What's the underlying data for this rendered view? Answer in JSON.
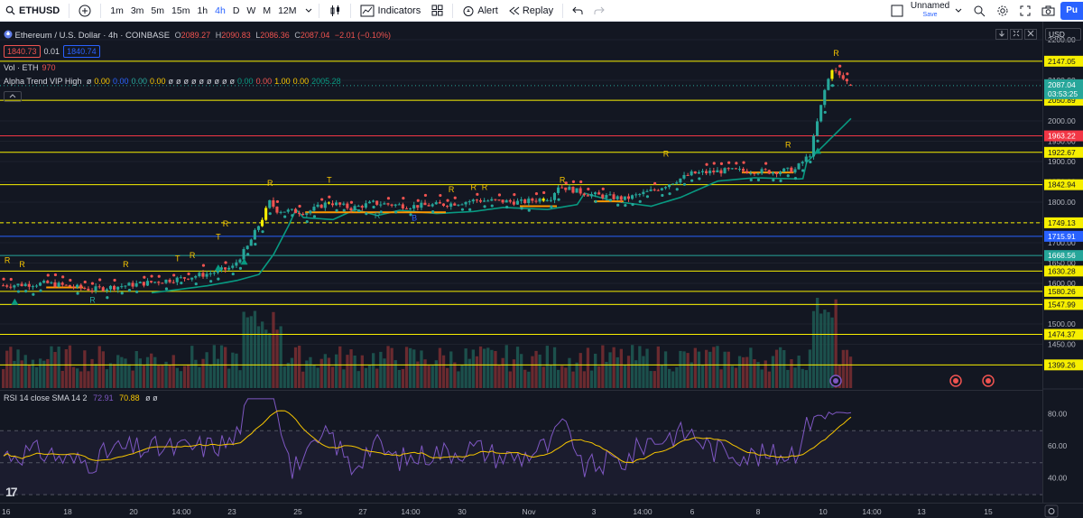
{
  "toolbar": {
    "symbol": "ETHUSD",
    "timeframes": [
      "1m",
      "3m",
      "5m",
      "15m",
      "1h",
      "4h",
      "D",
      "W",
      "M",
      "12M"
    ],
    "active_timeframe": "4h",
    "indicators_label": "Indicators",
    "alert_label": "Alert",
    "replay_label": "Replay",
    "layout_name": "Unnamed",
    "save_label": "Save",
    "publish_label": "Pu"
  },
  "legend": {
    "title": "Ethereum / U.S. Dollar · 4h · COINBASE",
    "o_label": "O",
    "o": "2089.27",
    "h_label": "H",
    "h": "2090.83",
    "l_label": "L",
    "l": "2086.36",
    "c_label": "C",
    "c": "2087.04",
    "change": "−2.01 (−0.10%)",
    "sell_price": "1840.73",
    "spread": "0.01",
    "buy_price": "1840.74",
    "volume_label": "Vol · ETH",
    "volume_value": "970",
    "alpha_label": "Alpha Trend VIP High",
    "alpha_values": [
      "ø",
      "0.00",
      "0.00",
      "0.00",
      "0.00",
      "ø",
      "ø",
      "ø",
      "ø",
      "ø",
      "ø",
      "ø",
      "ø",
      "ø",
      "0.00",
      "0.00",
      "1.00",
      "0.00",
      "2005.28"
    ],
    "collapse_icon": "chevron-up",
    "rsi_label": "RSI 14 close SMA 14 2",
    "rsi_value": "72.91",
    "rsi_sma_value": "70.88",
    "rsi_extra": "ø ø"
  },
  "currency": "USD",
  "price_axis": {
    "ticks": [
      "2200.00",
      "2150.00",
      "2100.00",
      "2050.00",
      "2000.00",
      "1950.00",
      "1900.00",
      "1850.00",
      "1800.00",
      "1750.00",
      "1700.00",
      "1650.00",
      "1600.00",
      "1550.00",
      "1500.00",
      "1450.00"
    ],
    "levels": [
      {
        "label": "2147.05",
        "color": "#f7ef00",
        "price": 2147.05
      },
      {
        "label": "2050.89",
        "color": "#f7ef00",
        "price": 2050.89
      },
      {
        "label": "1963.22",
        "color": "#f23645",
        "price": 1963.22
      },
      {
        "label": "1922.67",
        "color": "#f7ef00",
        "price": 1922.67
      },
      {
        "label": "1842.94",
        "color": "#f7ef00",
        "price": 1842.94
      },
      {
        "label": "1749.13",
        "color": "#f7ef00",
        "price": 1749.13
      },
      {
        "label": "1715.91",
        "color": "#2962ff",
        "price": 1715.91
      },
      {
        "label": "1668.56",
        "color": "#26a69a",
        "price": 1668.56
      },
      {
        "label": "1630.28",
        "color": "#f7ef00",
        "price": 1630.28
      },
      {
        "label": "1580.26",
        "color": "#f7ef00",
        "price": 1580.26
      },
      {
        "label": "1547.99",
        "color": "#f7ef00",
        "price": 1547.99
      },
      {
        "label": "1474.37",
        "color": "#f7ef00",
        "price": 1474.37
      },
      {
        "label": "1399.26",
        "color": "#f7ef00",
        "price": 1399.26
      }
    ],
    "current_price": "2087.04",
    "countdown": "03:53:25"
  },
  "rsi_axis": {
    "ticks": [
      "80.00",
      "60.00",
      "40.00"
    ]
  },
  "time_axis": {
    "labels": [
      "16",
      "18",
      "20",
      "14:00",
      "23",
      "25",
      "27",
      "14:00",
      "30",
      "Nov",
      "3",
      "14:00",
      "6",
      "8",
      "10",
      "14:00",
      "13",
      "15"
    ]
  },
  "signals": {
    "r": "R",
    "t": "T",
    "b": "B"
  },
  "colors": {
    "up": "#26a69a",
    "down": "#ef5350",
    "trend": "#089981",
    "level": "#f7ef00",
    "rsi": "#7e57c2",
    "rsi_sma": "#f7c600"
  },
  "chart_data": {
    "type": "candlestick",
    "title": "Ethereum / U.S. Dollar · 4h · COINBASE",
    "ylim": [
      1430,
      2220
    ],
    "close_start": 1595,
    "close_end": 2087.04,
    "key_closes": [
      {
        "x": "16",
        "close": 1595
      },
      {
        "x": "20",
        "close": 1620
      },
      {
        "x": "23",
        "close": 1760
      },
      {
        "x": "25",
        "close": 1790
      },
      {
        "x": "27",
        "close": 1795
      },
      {
        "x": "30",
        "close": 1800
      },
      {
        "x": "Nov",
        "close": 1830
      },
      {
        "x": "3",
        "close": 1820
      },
      {
        "x": "6",
        "close": 1880
      },
      {
        "x": "8",
        "close": 1880
      },
      {
        "x": "10",
        "close": 2087.04
      }
    ],
    "rsi_ylim": [
      25,
      95
    ]
  }
}
